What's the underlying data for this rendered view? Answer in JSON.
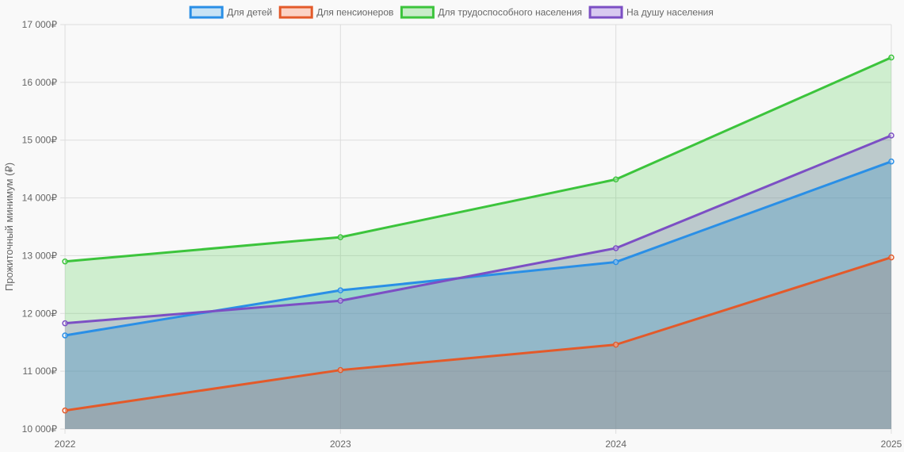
{
  "chart_data": {
    "type": "area",
    "ylabel": "Прожиточный минимум (₽)",
    "xlabel": "",
    "title": "",
    "x": [
      "2022",
      "2023",
      "2024",
      "2025"
    ],
    "ylim": [
      10000,
      17000
    ],
    "yticks": [
      {
        "value": 10000,
        "label": "10 000₽"
      },
      {
        "value": 11000,
        "label": "11 000₽"
      },
      {
        "value": 12000,
        "label": "12 000₽"
      },
      {
        "value": 13000,
        "label": "13 000₽"
      },
      {
        "value": 14000,
        "label": "14 000₽"
      },
      {
        "value": 15000,
        "label": "15 000₽"
      },
      {
        "value": 16000,
        "label": "16 000₽"
      },
      {
        "value": 17000,
        "label": "17 000₽"
      }
    ],
    "grid": true,
    "legend_position": "top",
    "series": [
      {
        "name": "Для детей",
        "color": "#2a8fe6",
        "fill": "rgba(54,162,235,0.35)",
        "legend_fill": "rgba(54,162,235,0.25)",
        "values": [
          11620,
          12400,
          12890,
          14630
        ]
      },
      {
        "name": "Для пенсионеров",
        "color": "#e35a2a",
        "fill": "rgba(230,96,60,0.20)",
        "legend_fill": "rgba(255,140,100,0.35)",
        "values": [
          10320,
          11020,
          11460,
          12970
        ]
      },
      {
        "name": "Для трудоспособного населения",
        "color": "#3cc43c",
        "fill": "rgba(60,200,60,0.22)",
        "legend_fill": "rgba(60,200,60,0.25)",
        "values": [
          12900,
          13320,
          14320,
          16430
        ]
      },
      {
        "name": "На душу населения",
        "color": "#7c4fc4",
        "fill": "rgba(124,79,196,0.22)",
        "legend_fill": "rgba(140,90,220,0.30)",
        "values": [
          11830,
          12220,
          13130,
          15080
        ]
      }
    ]
  }
}
